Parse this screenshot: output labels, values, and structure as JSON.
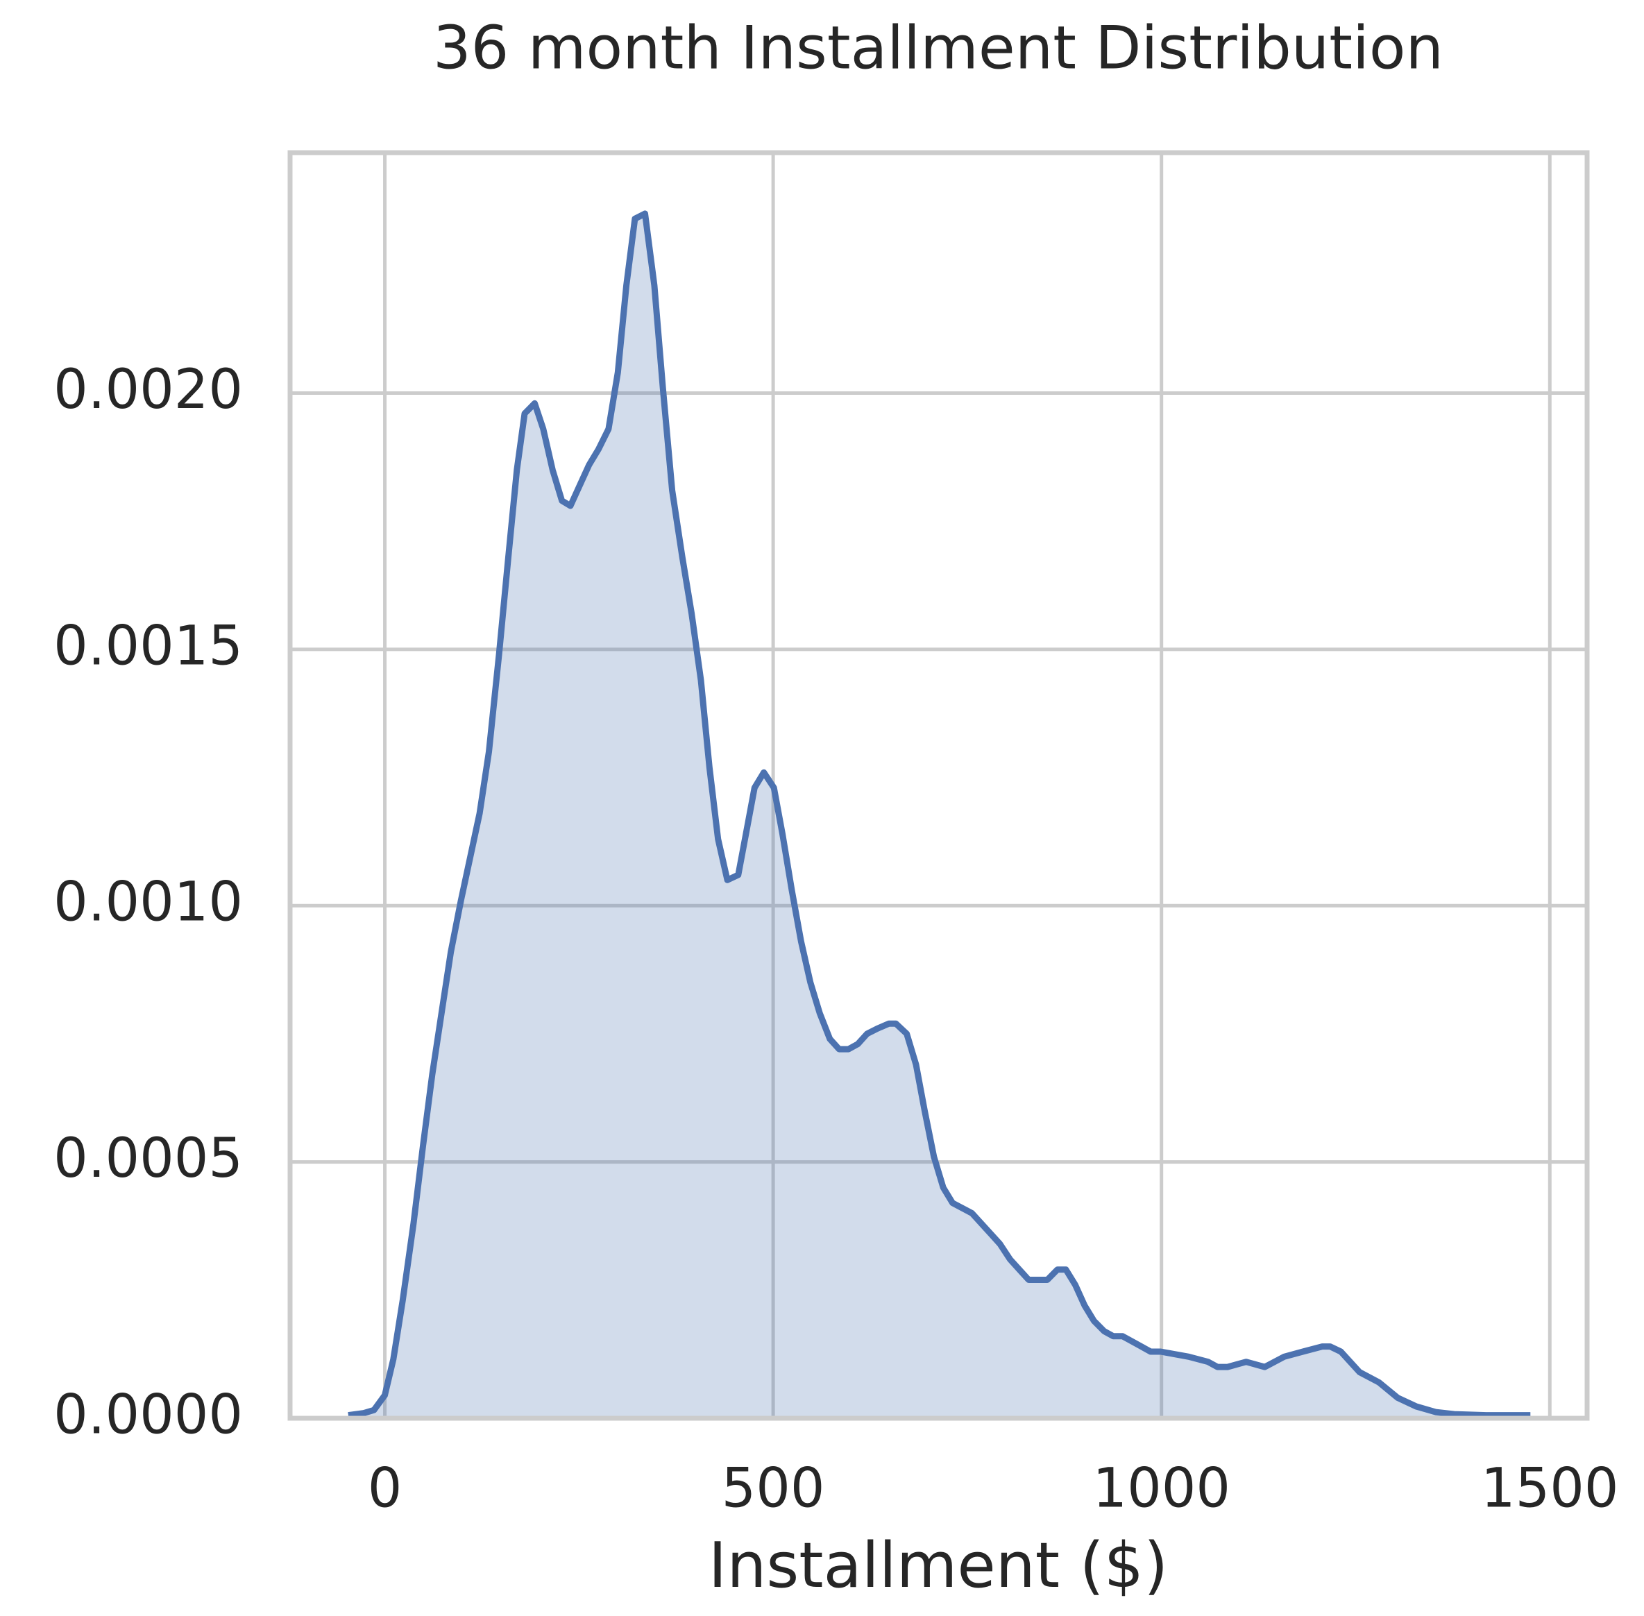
{
  "chart_data": {
    "type": "area",
    "title": "36 month Installment Distribution",
    "xlabel": "Installment ($)",
    "color": "#4c72b0",
    "grid": true,
    "xlim": [
      -122,
      1548
    ],
    "ylim": [
      0,
      0.002469
    ],
    "xticks": [
      0,
      500,
      1000,
      1500
    ],
    "yticks": [
      {
        "value": 0,
        "label": "0.0000"
      },
      {
        "value": 0.0005,
        "label": "0.0005"
      },
      {
        "value": 0.001,
        "label": "0.0010"
      },
      {
        "value": 0.0015,
        "label": "0.0015"
      },
      {
        "value": 0.002,
        "label": "0.0020"
      }
    ],
    "x": [
      -47,
      -27,
      -14,
      0,
      11,
      23,
      37,
      49,
      61,
      73,
      85,
      98,
      122,
      134,
      147,
      159,
      170,
      180,
      193,
      204,
      216,
      228,
      239,
      251,
      263,
      275,
      288,
      300,
      311,
      322,
      335,
      347,
      358,
      370,
      383,
      395,
      407,
      418,
      429,
      441,
      455,
      465,
      476,
      488,
      501,
      512,
      524,
      536,
      548,
      560,
      573,
      585,
      597,
      609,
      621,
      634,
      649,
      658,
      672,
      684,
      695,
      707,
      719,
      731,
      756,
      780,
      792,
      805,
      817,
      829,
      841,
      853,
      866,
      877,
      889,
      901,
      913,
      926,
      938,
      950,
      962,
      974,
      986,
      999,
      1035,
      1060,
      1072,
      1085,
      1109,
      1133,
      1158,
      1182,
      1207,
      1217,
      1231,
      1255,
      1280,
      1304,
      1328,
      1353,
      1377,
      1418,
      1475
    ],
    "values": [
      6e-06,
      1e-05,
      1.6e-05,
      4.5e-05,
      0.000115,
      0.00023,
      0.00038,
      0.00053,
      0.00067,
      0.00079,
      0.00091,
      0.00101,
      0.00118,
      0.0013,
      0.00149,
      0.00168,
      0.00185,
      0.00196,
      0.00198,
      0.00193,
      0.00185,
      0.00179,
      0.00178,
      0.00182,
      0.00186,
      0.00189,
      0.00193,
      0.00204,
      0.00221,
      0.00234,
      0.00235,
      0.00221,
      0.00201,
      0.00181,
      0.00168,
      0.00157,
      0.00144,
      0.00127,
      0.00113,
      0.00105,
      0.00106,
      0.00114,
      0.00123,
      0.00126,
      0.00123,
      0.00114,
      0.00103,
      0.00093,
      0.00085,
      0.00079,
      0.00074,
      0.00072,
      0.00072,
      0.00073,
      0.00075,
      0.00076,
      0.00077,
      0.00077,
      0.00075,
      0.00069,
      0.0006,
      0.00051,
      0.00045,
      0.00042,
      0.0004,
      0.00036,
      0.00034,
      0.00031,
      0.00029,
      0.00027,
      0.00027,
      0.00027,
      0.00029,
      0.00029,
      0.00026,
      0.00022,
      0.00019,
      0.00017,
      0.00016,
      0.00016,
      0.00015,
      0.00014,
      0.00013,
      0.00013,
      0.00012,
      0.00011,
      0.0001,
      0.0001,
      0.00011,
      0.0001,
      0.00012,
      0.00013,
      0.00014,
      0.00014,
      0.00013,
      9e-05,
      7e-05,
      4e-05,
      2.3e-05,
      1.2e-05,
      8e-06,
      6e-06,
      6e-06
    ]
  }
}
